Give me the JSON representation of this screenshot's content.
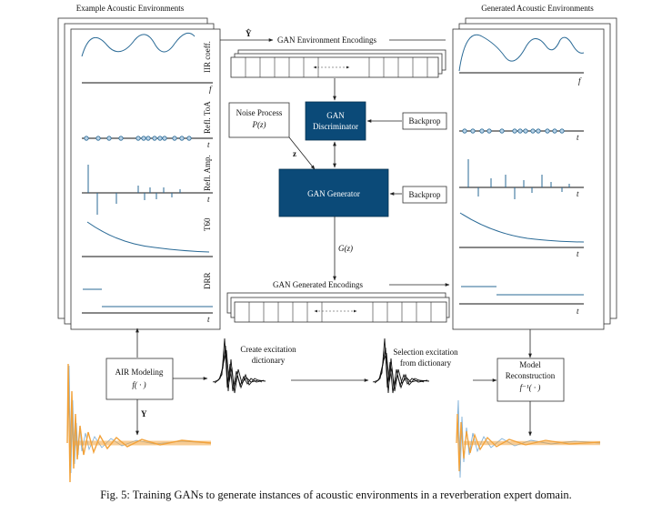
{
  "left_panel": {
    "title": "Example Acoustic Environments",
    "row_labels": [
      "IIR coeff.",
      "Refl. ToA",
      "Refl. Amp.",
      "T60",
      "DRR"
    ],
    "axis_labels": [
      "f",
      "t",
      "t",
      "t",
      "t"
    ]
  },
  "right_panel": {
    "title": "Generated Acoustic Environments",
    "axis_labels": [
      "f",
      "t",
      "t",
      "t",
      "t"
    ]
  },
  "center": {
    "y_hat": "Ŷ",
    "gan_env_encodings": "GAN Environment Encodings",
    "noise_process_line1": "Noise Process",
    "noise_process_line2": "P(z)",
    "z_label": "z",
    "discriminator_line1": "GAN",
    "discriminator_line2": "Discriminator",
    "backprop": "Backprop",
    "generator": "GAN Generator",
    "g_of_z": "G(z)",
    "gan_gen_encodings": "GAN Generated Encodings"
  },
  "bottom": {
    "air_modeling_line1": "AIR Modeling",
    "air_modeling_line2": "f( · )",
    "y_label": "Y",
    "create_dict_line1": "Create excitation",
    "create_dict_line2": "dictionary",
    "selection_line1": "Selection excitation",
    "selection_line2": "from dictionary",
    "model_recon_line1": "Model",
    "model_recon_line2": "Reconstruction",
    "model_recon_line3": "f⁻¹( · )"
  },
  "caption": "Fig. 5: Training GANs to generate instances of acoustic environments in a reverberation expert domain.",
  "colors": {
    "gan_box": "#0b4a78",
    "curve": "#2a6a96",
    "rir_orange": "#f2a23a",
    "rir_blue": "#7fb0d8"
  }
}
